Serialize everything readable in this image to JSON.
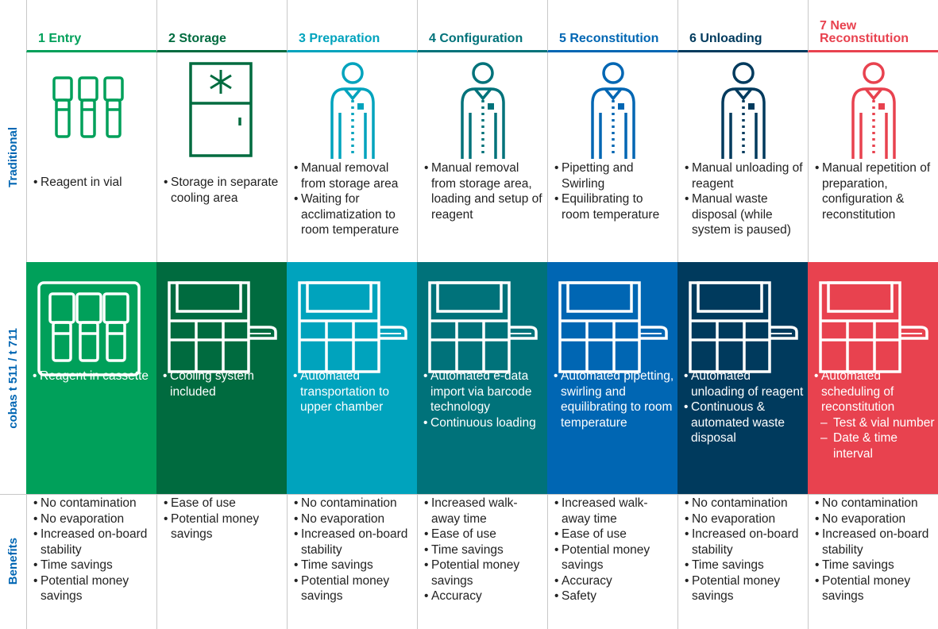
{
  "row_labels": {
    "traditional": "Traditional",
    "cobas": {
      "bold": "cobas",
      "rest": "t 511 / t 711"
    },
    "benefits": "Benefits"
  },
  "columns": [
    {
      "header": "1 Entry",
      "traditional": [
        "Reagent in vial"
      ],
      "cobas": [
        "Reagent in cassette"
      ],
      "benefits": [
        "No contamination",
        "No evaporation",
        "Increased on-board stability",
        "Time savings",
        "Potential money savings"
      ]
    },
    {
      "header": "2 Storage",
      "traditional": [
        "Storage in separate cooling area"
      ],
      "cobas": [
        "Cooling system included"
      ],
      "benefits": [
        "Ease of use",
        "Potential money savings"
      ]
    },
    {
      "header": "3 Preparation",
      "traditional": [
        "Manual removal from storage area",
        "Waiting for acclimatization to room temperature"
      ],
      "cobas": [
        "Automated transportation to upper chamber"
      ],
      "benefits": [
        "No contamination",
        "No evaporation",
        "Increased on-board stability",
        "Time savings",
        "Potential money savings"
      ]
    },
    {
      "header": "4 Configuration",
      "traditional": [
        "Manual removal from storage area, loading and setup of reagent"
      ],
      "cobas": [
        "Automated e-data import via barcode technology",
        "Continuous loading"
      ],
      "benefits": [
        "Increased walk-away time",
        "Ease of use",
        "Time savings",
        "Potential money savings",
        "Accuracy"
      ]
    },
    {
      "header": "5 Reconstitution",
      "traditional": [
        "Pipetting and Swirling",
        "Equilibrating to room temperature"
      ],
      "cobas": [
        "Automated pipetting, swirling and equilibrating to room temperature"
      ],
      "benefits": [
        "Increased walk-away time",
        "Ease of use",
        "Potential money savings",
        "Accuracy",
        "Safety"
      ]
    },
    {
      "header": "6 Unloading",
      "traditional": [
        "Manual unloading of reagent",
        "Manual waste disposal (while system is paused)"
      ],
      "cobas": [
        "Automated unloading of reagent",
        "Continuous & automated waste disposal"
      ],
      "benefits": [
        "No contamination",
        "No evaporation",
        "Increased on-board stability",
        "Time savings",
        "Potential money savings"
      ]
    },
    {
      "header": "7 New Reconstitution",
      "traditional": [
        "Manual repetition of preparation, configuration & reconstitution"
      ],
      "cobas": [
        {
          "text": "Automated scheduling of reconstitution",
          "sub": [
            "Test & vial number",
            "Date & time interval"
          ]
        }
      ],
      "benefits": [
        "No contamination",
        "No evaporation",
        "Increased on-board stability",
        "Time savings",
        "Potential money savings"
      ]
    }
  ]
}
